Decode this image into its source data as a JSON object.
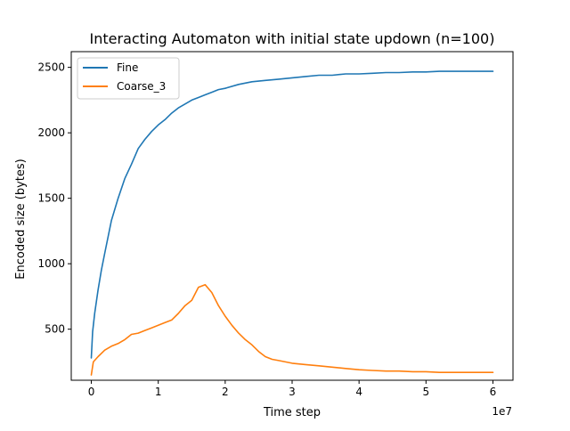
{
  "chart_data": {
    "type": "line",
    "title": "Interacting Automaton with initial state updown (n=100)",
    "xlabel": "Time step",
    "ylabel": "Encoded size (bytes)",
    "x_offset_label": "1e7",
    "xlim": [
      -3000000,
      63000000
    ],
    "ylim": [
      110,
      2620
    ],
    "xticks": [
      0,
      10000000,
      20000000,
      30000000,
      40000000,
      50000000,
      60000000
    ],
    "xtick_labels": [
      "0",
      "1",
      "2",
      "3",
      "4",
      "5",
      "6"
    ],
    "yticks": [
      500,
      1000,
      1500,
      2000,
      2500
    ],
    "ytick_labels": [
      "500",
      "1000",
      "1500",
      "2000",
      "2500"
    ],
    "grid": false,
    "legend_position": "top-left",
    "colors": {
      "Fine": "#1f77b4",
      "Coarse_3": "#ff7f0e"
    },
    "series": [
      {
        "name": "Fine",
        "x": [
          0,
          200000,
          500000,
          1000000,
          1500000,
          2000000,
          3000000,
          4000000,
          5000000,
          6000000,
          7000000,
          8000000,
          9000000,
          10000000,
          11000000,
          12000000,
          13000000,
          14000000,
          15000000,
          16000000,
          17000000,
          18000000,
          19000000,
          20000000,
          22000000,
          24000000,
          26000000,
          28000000,
          30000000,
          32000000,
          34000000,
          36000000,
          38000000,
          40000000,
          42000000,
          44000000,
          46000000,
          48000000,
          50000000,
          52000000,
          54000000,
          56000000,
          58000000,
          60000000
        ],
        "y": [
          280,
          480,
          620,
          800,
          950,
          1080,
          1330,
          1500,
          1650,
          1760,
          1880,
          1950,
          2010,
          2060,
          2100,
          2150,
          2190,
          2220,
          2250,
          2270,
          2290,
          2310,
          2330,
          2340,
          2370,
          2390,
          2400,
          2410,
          2420,
          2430,
          2440,
          2440,
          2450,
          2450,
          2455,
          2460,
          2460,
          2465,
          2465,
          2470,
          2470,
          2470,
          2470,
          2470
        ]
      },
      {
        "name": "Coarse_3",
        "x": [
          0,
          300000,
          1000000,
          2000000,
          3000000,
          4000000,
          5000000,
          6000000,
          7000000,
          8000000,
          9000000,
          10000000,
          11000000,
          12000000,
          13000000,
          14000000,
          15000000,
          16000000,
          17000000,
          18000000,
          19000000,
          20000000,
          21000000,
          22000000,
          23000000,
          24000000,
          25000000,
          26000000,
          27000000,
          28000000,
          29000000,
          30000000,
          32000000,
          34000000,
          36000000,
          38000000,
          40000000,
          42000000,
          44000000,
          46000000,
          48000000,
          50000000,
          52000000,
          54000000,
          56000000,
          58000000,
          60000000
        ],
        "y": [
          150,
          250,
          290,
          340,
          370,
          390,
          420,
          460,
          470,
          490,
          510,
          530,
          550,
          570,
          620,
          680,
          720,
          820,
          840,
          780,
          680,
          600,
          530,
          470,
          420,
          380,
          330,
          290,
          270,
          260,
          250,
          240,
          230,
          220,
          210,
          200,
          190,
          185,
          180,
          180,
          175,
          175,
          170,
          170,
          170,
          170,
          170
        ]
      }
    ]
  }
}
